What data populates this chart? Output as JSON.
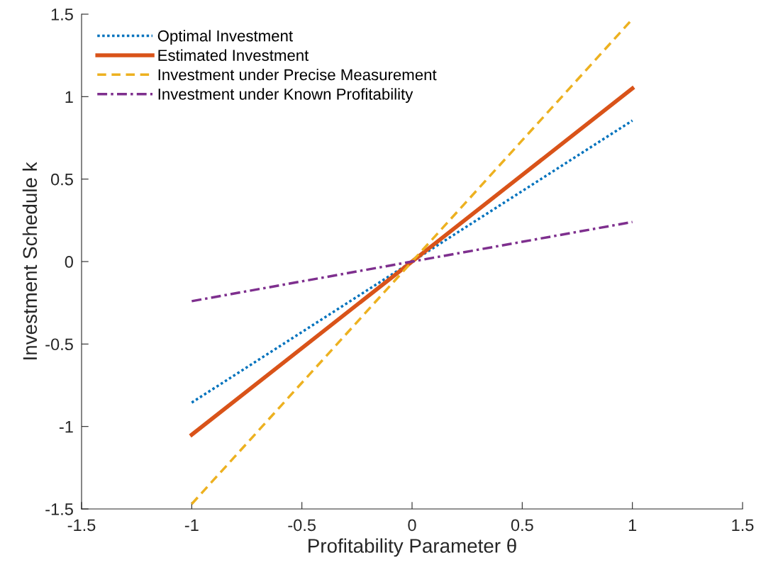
{
  "chart_data": {
    "type": "line",
    "xlabel": "Profitability Parameter θ",
    "ylabel": "Investment Schedule k",
    "x": [
      -1,
      1
    ],
    "series": [
      {
        "name": "Optimal Investment",
        "color": "#0072bd",
        "values": [
          -0.855,
          0.855
        ],
        "line_style": "dotted"
      },
      {
        "name": "Estimated Investment",
        "color": "#d95319",
        "values": [
          -1.05,
          1.05
        ],
        "line_style": "solid"
      },
      {
        "name": "Investment under Precise Measurement",
        "color": "#edb120",
        "values": [
          -1.47,
          1.47
        ],
        "line_style": "dashed"
      },
      {
        "name": "Investment under Known Profitability",
        "color": "#7e2f8e",
        "values": [
          -0.24,
          0.24
        ],
        "line_style": "dashdot"
      }
    ],
    "xlim": [
      -1.5,
      1.5
    ],
    "ylim": [
      -1.5,
      1.5
    ],
    "xticks": [
      -1.5,
      -1,
      -0.5,
      0,
      0.5,
      1,
      1.5
    ],
    "yticks": [
      -1.5,
      -1,
      -0.5,
      0,
      0.5,
      1,
      1.5
    ],
    "grid": false,
    "legend": "top left"
  }
}
